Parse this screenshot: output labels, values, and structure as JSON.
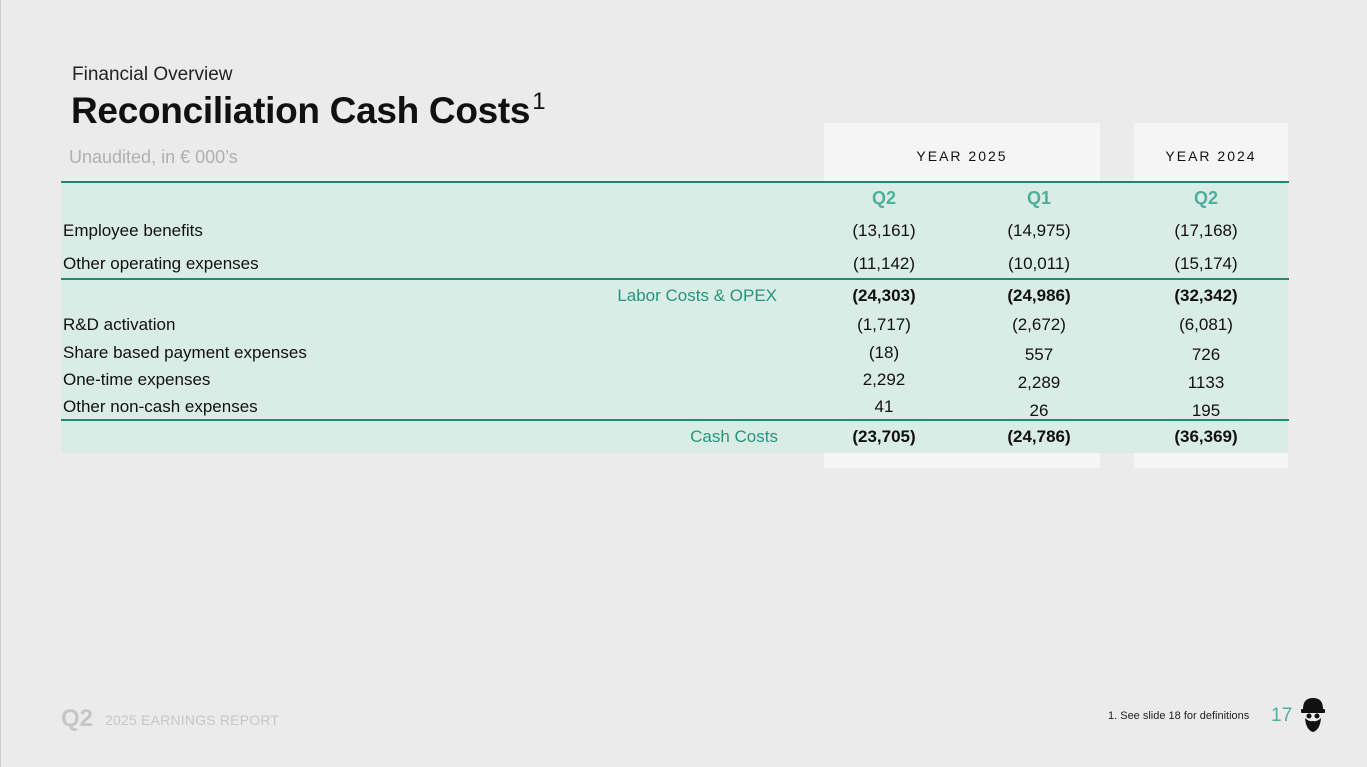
{
  "header": {
    "overline": "Financial Overview",
    "title": "Reconciliation Cash Costs",
    "title_sup": "1",
    "subtitle": "Unaudited, in € 000’s"
  },
  "table": {
    "year_groups": [
      "YEAR 2025",
      "YEAR 2024"
    ],
    "quarters": [
      "Q2",
      "Q1",
      "Q2"
    ],
    "rows": [
      {
        "label": "Employee benefits",
        "values": [
          "(13,161)",
          "(14,975)",
          "(17,168)"
        ]
      },
      {
        "label": "Other operating expenses",
        "values": [
          "(11,142)",
          "(10,011)",
          "(15,174)"
        ]
      },
      {
        "label": "Labor Costs & OPEX",
        "values": [
          "(24,303)",
          "(24,986)",
          "(32,342)"
        ],
        "subtotal": true
      },
      {
        "label": "R&D activation",
        "values": [
          "(1,717)",
          "(2,672)",
          "(6,081)"
        ]
      },
      {
        "label": "Share based payment expenses",
        "values": [
          "(18)",
          "557",
          "726"
        ]
      },
      {
        "label": "One-time expenses",
        "values": [
          "2,292",
          "2,289",
          "1133"
        ]
      },
      {
        "label": "Other non-cash expenses",
        "values": [
          "41",
          "26",
          "195"
        ]
      },
      {
        "label": "Cash Costs",
        "values": [
          "(23,705)",
          "(24,786)",
          "(36,369)"
        ],
        "subtotal": true
      }
    ]
  },
  "footer": {
    "quarter": "Q2",
    "report": "2025 EARNINGS REPORT",
    "footnote": "1. See slide 18 for definitions",
    "page_number": "17",
    "logo_icon": "gnome-head-logo-icon"
  },
  "colors": {
    "accent": "#4cb09a",
    "rule": "#1b8a72",
    "band": "#daece6",
    "panel": "#f5f5f5",
    "background": "#ebebeb"
  }
}
